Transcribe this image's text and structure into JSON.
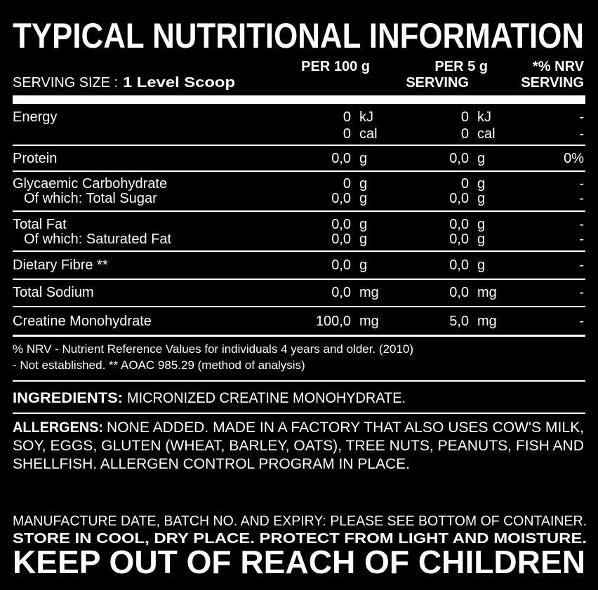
{
  "title": "TYPICAL NUTRITIONAL INFORMATION",
  "header": {
    "serving_label": "SERVING SIZE :",
    "serving_value": "1 Level Scoop",
    "col_per_100": "PER 100  g",
    "col_per_serving": [
      "PER 5  g",
      "SERVING"
    ],
    "col_nrv": [
      "*% NRV",
      "SERVING"
    ]
  },
  "rows": [
    [
      {
        "name": "Energy",
        "per_100": "0",
        "unit_100": "kJ",
        "per_serving": "0",
        "unit_serving": "kJ",
        "nrv": "-"
      },
      {
        "per_100": "0",
        "unit_100": "cal",
        "per_serving": "0",
        "unit_serving": "cal",
        "nrv": "-"
      }
    ],
    [
      {
        "name": "Protein",
        "per_100": "0,0",
        "unit_100": "g",
        "per_serving": "0,0",
        "unit_serving": "g",
        "nrv": "0%"
      }
    ],
    [
      {
        "name": "Glycaemic Carbohydrate",
        "per_100": "0",
        "unit_100": "g",
        "per_serving": "0",
        "unit_serving": "g",
        "nrv": "-"
      },
      {
        "name": "Of which: Total Sugar",
        "per_100": "0,0",
        "unit_100": "g",
        "per_serving": "0,0",
        "unit_serving": "g",
        "nrv": "-"
      }
    ],
    [
      {
        "name": "Total Fat",
        "per_100": "0,0",
        "unit_100": "g",
        "per_serving": "0,0",
        "unit_serving": "g",
        "nrv": "-"
      },
      {
        "name": "Of which: Saturated Fat",
        "per_100": "0,0",
        "unit_100": "g",
        "per_serving": "0,0",
        "unit_serving": "g",
        "nrv": "-"
      }
    ],
    [
      {
        "name": "Dietary Fibre **",
        "per_100": "0,0",
        "unit_100": "g",
        "per_serving": "0,0",
        "unit_serving": "g",
        "nrv": "-"
      }
    ],
    [
      {
        "name": "Total Sodium",
        "per_100": "0,0",
        "unit_100": "mg",
        "per_serving": "0,0",
        "unit_serving": "mg",
        "nrv": "-"
      }
    ],
    [
      {
        "name": "Creatine Monohydrate",
        "per_100": "100,0",
        "unit_100": "mg",
        "per_serving": "5,0",
        "unit_serving": "mg",
        "nrv": "-"
      }
    ]
  ],
  "footnotes": [
    "% NRV - Nutrient Reference Values for individuals 4 years and older. (2010)",
    "- Not established. ** AOAC 985.29 (method of analysis)"
  ],
  "ingredients": {
    "label": "INGREDIENTS:",
    "text": "MICRONIZED CREATINE MONOHYDRATE."
  },
  "allergens": {
    "label": "ALLERGENS:",
    "lines": [
      "NONE ADDED. MADE IN A FACTORY THAT ALSO USES COW'S MILK,",
      "SOY, EGGS, GLUTEN (WHEAT, BARLEY, OATS), TREE NUTS, PEANUTS, FISH AND",
      "SHELLFISH. ALLERGEN CONTROL PROGRAM IN PLACE."
    ]
  },
  "storage": [
    "MANUFACTURE DATE, BATCH NO. AND EXPIRY: PLEASE SEE BOTTOM OF CONTAINER.",
    "STORE IN COOL, DRY PLACE. PROTECT FROM LIGHT AND MOISTURE."
  ],
  "warning": "KEEP OUT OF REACH OF CHILDREN"
}
